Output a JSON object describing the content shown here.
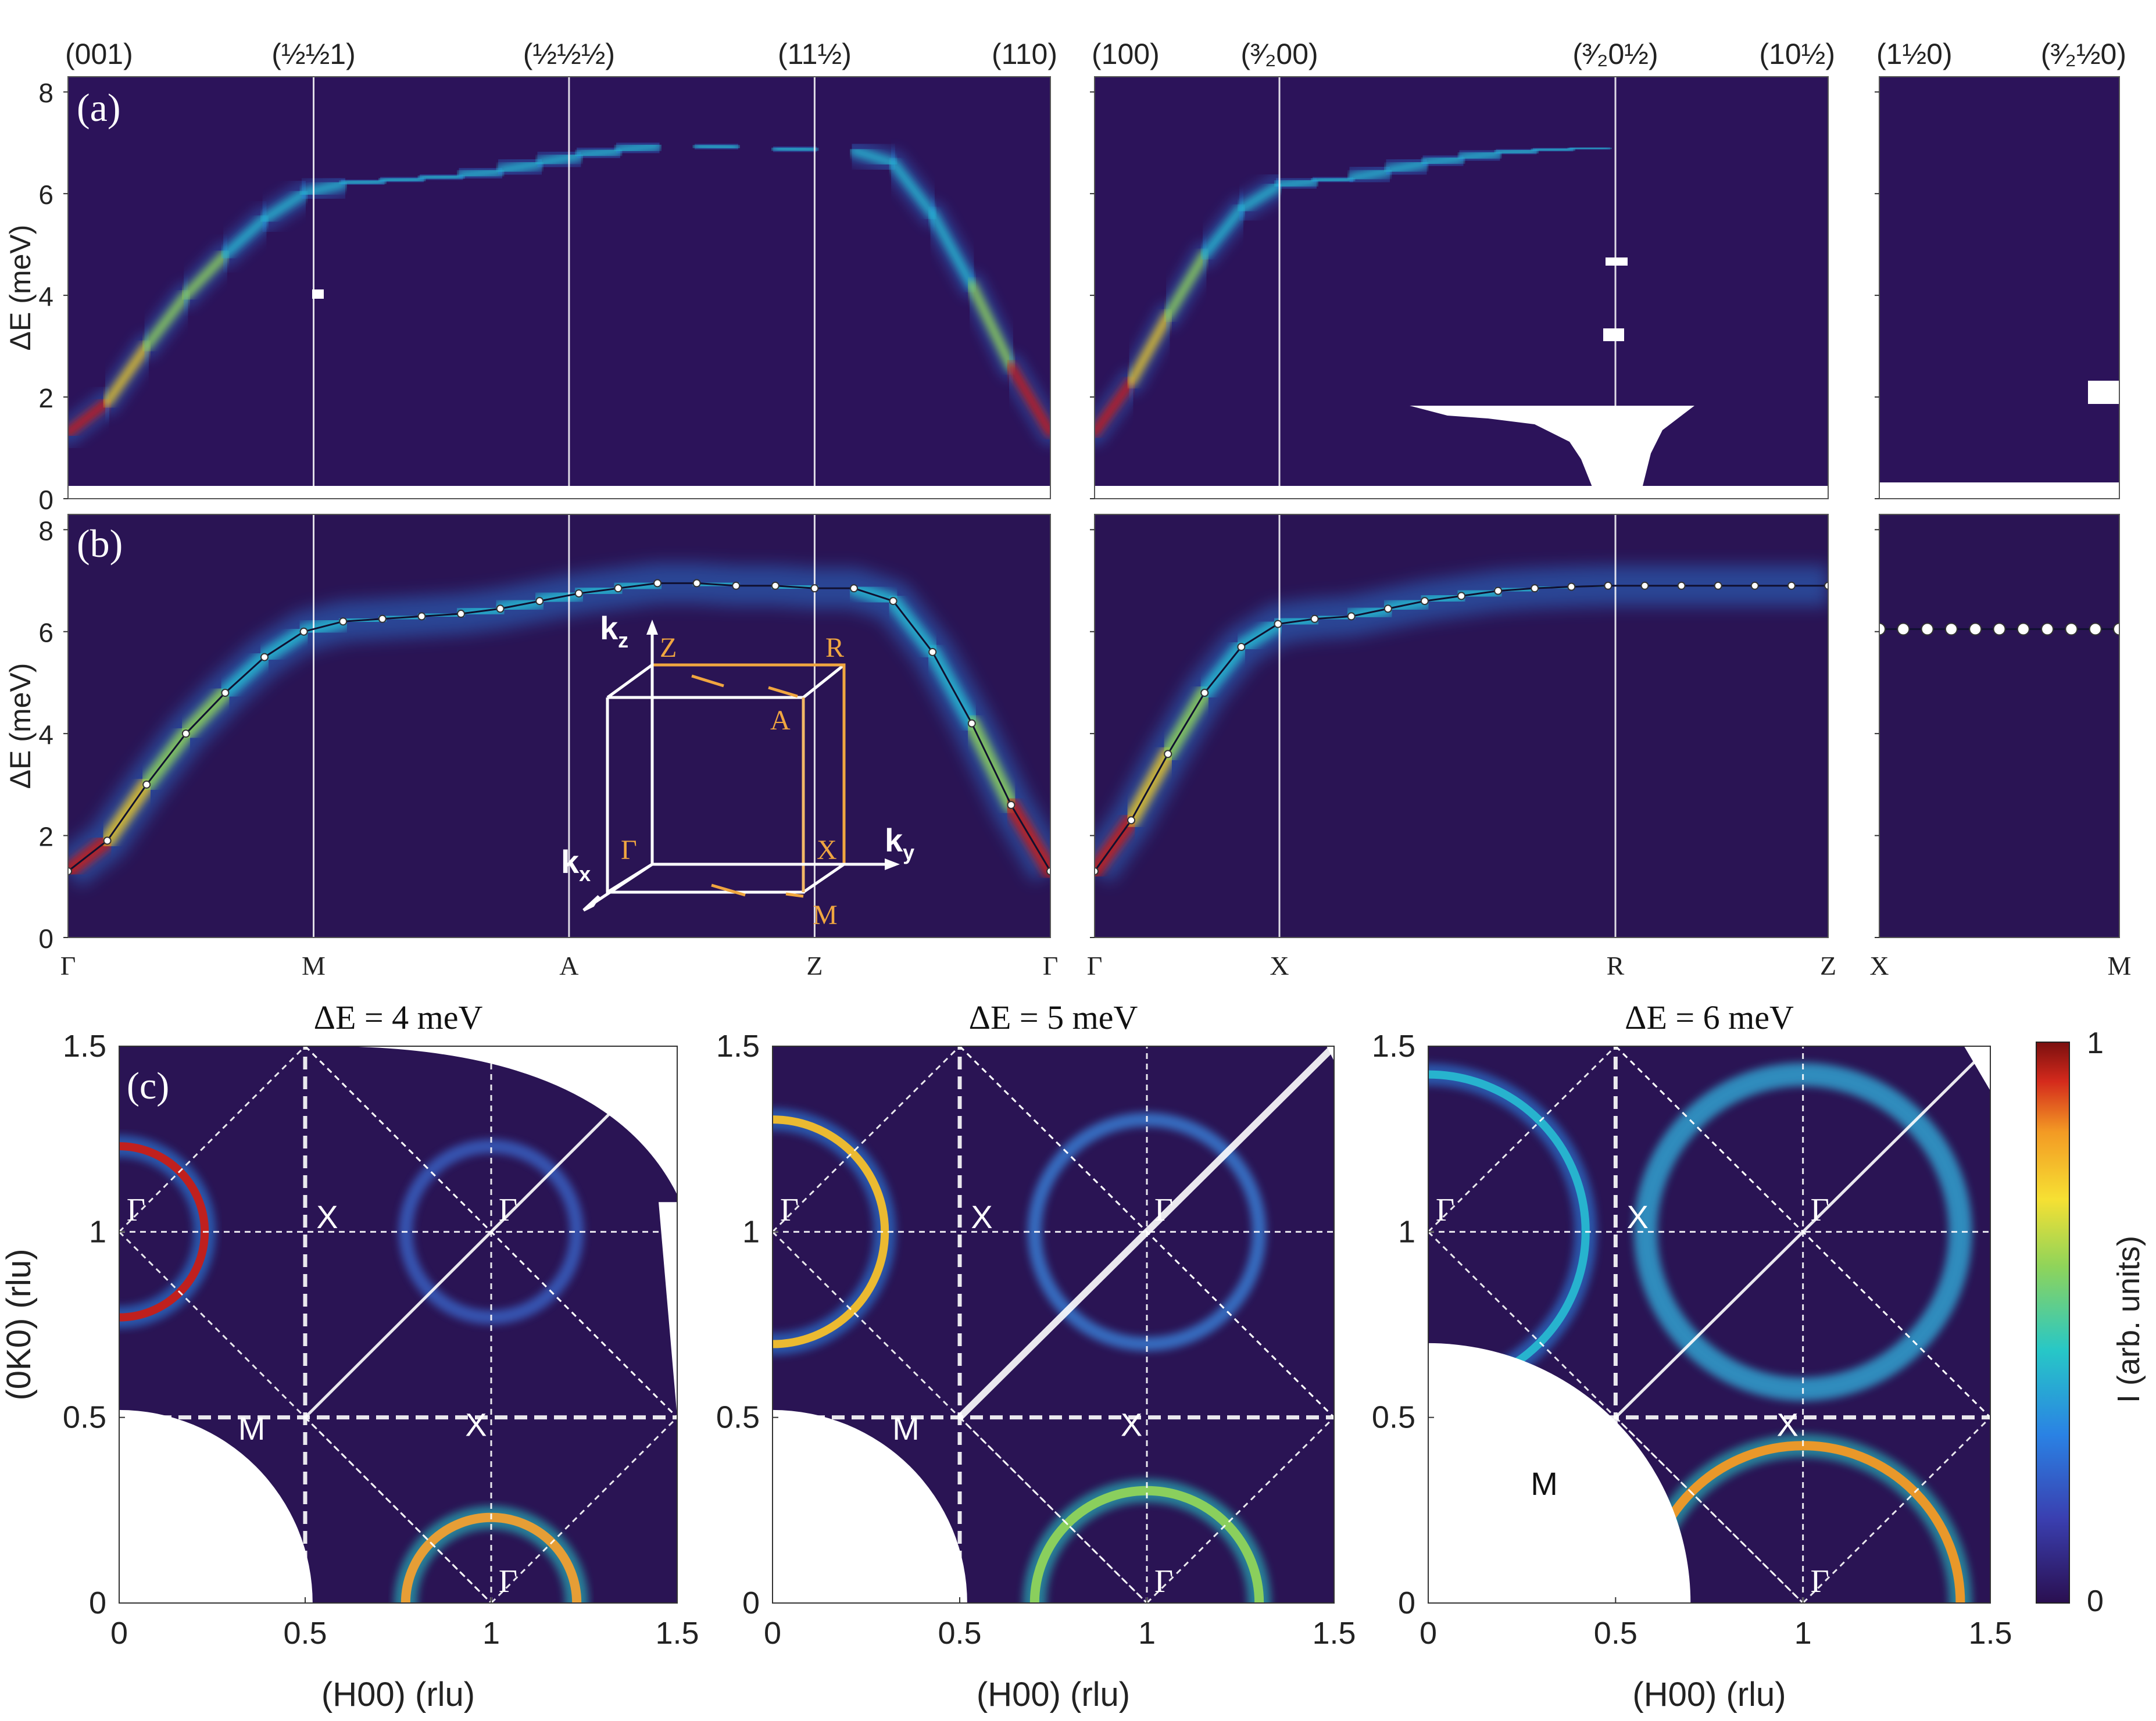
{
  "colors": {
    "background": "#2a1454",
    "panel_a_background": "#2c135a",
    "white_line": "#ffffff",
    "dashed_line": "#ffffff",
    "bz_orange": "#f0a640",
    "colormap": [
      "#2a0f50",
      "#3a3fb0",
      "#2a82e4",
      "#27c7c7",
      "#8fd45a",
      "#f6e033",
      "#f39a24",
      "#d42a1c",
      "#7a0f0f"
    ]
  },
  "colorbar": {
    "label": "I (arb. units)",
    "max_label": "1",
    "min_label": "0"
  },
  "chart_data": [
    {
      "id": "a",
      "type": "heatmap",
      "panel_label": "(a)",
      "ylabel": "ΔE (meV)",
      "ylim": [
        0,
        8.3
      ],
      "yticks": [
        "0",
        "2",
        "4",
        "6",
        "8"
      ],
      "top_labels_group1": [
        "(001)",
        "(½½1)",
        "(½½½)",
        "(11½)",
        "(110)"
      ],
      "top_labels_group2": [
        "(100)",
        "(3/200)",
        "(3/20½)",
        "(10½)"
      ],
      "top_labels_group3": [
        "(1½0)",
        "(3/2½0)"
      ],
      "top_labels_display_group2": [
        "(100)",
        "(³⁄₂00)",
        "(³⁄₂0½)",
        "(10½)"
      ],
      "top_labels_display_group3": [
        "(1½0)",
        "(³⁄₂½0)"
      ]
    },
    {
      "id": "b",
      "type": "line",
      "panel_label": "(b)",
      "ylabel": "ΔE (meV)",
      "ylim": [
        0,
        8.3
      ],
      "yticks": [
        "0",
        "2",
        "4",
        "6",
        "8"
      ],
      "segments": [
        {
          "path_labels": [
            "Γ",
            "M",
            "A",
            "Z",
            "Γ"
          ],
          "x": [
            0.0,
            0.04,
            0.08,
            0.12,
            0.16,
            0.2,
            0.24,
            0.28,
            0.32,
            0.36,
            0.4,
            0.44,
            0.48,
            0.52,
            0.56,
            0.6,
            0.64,
            0.68,
            0.72,
            0.76,
            0.8,
            0.84,
            0.88,
            0.92,
            0.96,
            1.0
          ],
          "values": [
            1.3,
            1.9,
            3.0,
            4.0,
            4.8,
            5.5,
            6.0,
            6.2,
            6.25,
            6.3,
            6.35,
            6.45,
            6.6,
            6.75,
            6.85,
            6.95,
            6.95,
            6.9,
            6.9,
            6.85,
            6.85,
            6.6,
            5.6,
            4.2,
            2.6,
            1.3
          ]
        },
        {
          "path_labels": [
            "Γ",
            "X",
            "R",
            "Z"
          ],
          "x": [
            0.0,
            0.05,
            0.1,
            0.15,
            0.2,
            0.25,
            0.3,
            0.35,
            0.4,
            0.45,
            0.5,
            0.55,
            0.6,
            0.65,
            0.7,
            0.75,
            0.8,
            0.85,
            0.9,
            0.95,
            1.0
          ],
          "values": [
            1.3,
            2.3,
            3.6,
            4.8,
            5.7,
            6.15,
            6.25,
            6.3,
            6.45,
            6.6,
            6.7,
            6.8,
            6.85,
            6.88,
            6.9,
            6.9,
            6.9,
            6.9,
            6.9,
            6.9,
            6.9
          ]
        },
        {
          "path_labels": [
            "X",
            "M"
          ],
          "x": [
            0.0,
            0.1,
            0.2,
            0.3,
            0.4,
            0.5,
            0.6,
            0.7,
            0.8,
            0.9,
            1.0
          ],
          "values": [
            6.05,
            6.05,
            6.05,
            6.05,
            6.05,
            6.05,
            6.05,
            6.05,
            6.05,
            6.05,
            6.05
          ]
        }
      ],
      "inset": {
        "labels": [
          "Z",
          "R",
          "A",
          "Γ",
          "X",
          "M"
        ],
        "axes": [
          "kz",
          "ky",
          "kx"
        ]
      }
    },
    {
      "id": "c",
      "type": "heatmap",
      "panel_label": "(c)",
      "xlabel": "(H00) (rlu)",
      "ylabel": "(0K0) (rlu)",
      "xlim": [
        0,
        1.5
      ],
      "ylim": [
        0,
        1.5
      ],
      "ticks": [
        "0",
        "0.5",
        "1",
        "1.5"
      ],
      "maps": [
        {
          "title": "ΔE = 4 meV",
          "labels": [
            "Γ",
            "X",
            "Γ",
            "M",
            "X",
            "Γ"
          ]
        },
        {
          "title": "ΔE = 5 meV",
          "labels": [
            "Γ",
            "X",
            "Γ",
            "M",
            "X",
            "Γ"
          ]
        },
        {
          "title": "ΔE = 6 meV",
          "labels": [
            "Γ",
            "X",
            "Γ",
            "M",
            "X",
            "Γ"
          ]
        }
      ]
    }
  ]
}
